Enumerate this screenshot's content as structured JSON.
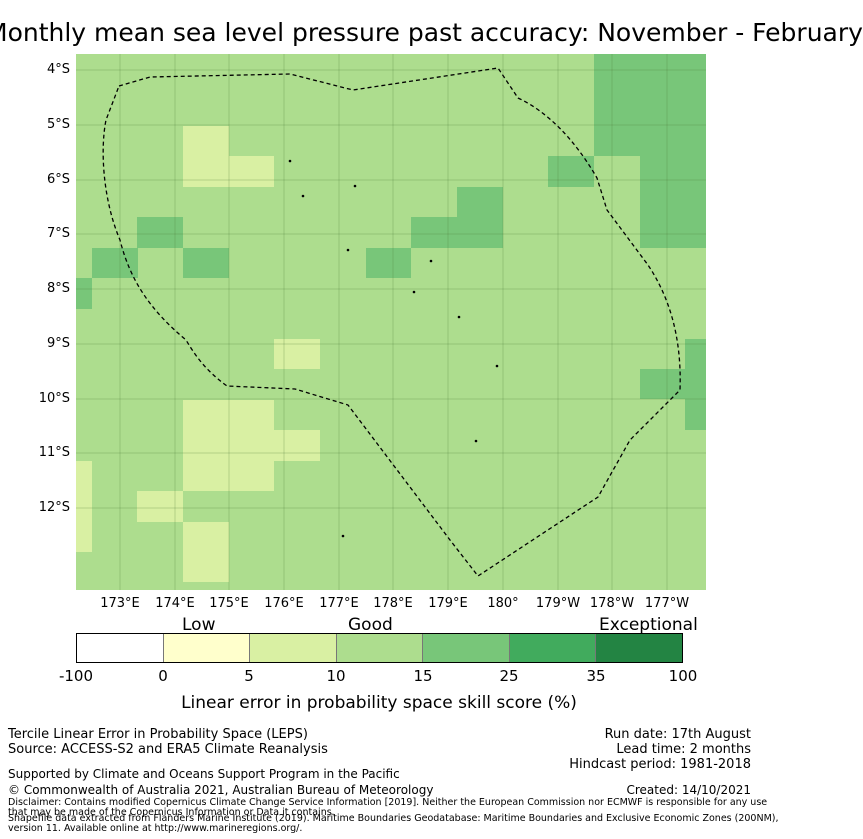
{
  "title": "Monthly mean sea level pressure past accuracy: November - February",
  "map": {
    "lat_labels": [
      "4°S",
      "5°S",
      "6°S",
      "7°S",
      "8°S",
      "9°S",
      "10°S",
      "11°S",
      "12°S"
    ],
    "lon_labels": [
      "173°E",
      "174°E",
      "175°E",
      "176°E",
      "177°E",
      "178°E",
      "179°E",
      "180°",
      "179°W",
      "178°W",
      "177°W"
    ],
    "colors": {
      "good_mid": "#addd8e",
      "good_low": "#d9f0a3",
      "good_high": "#78c679",
      "exceptional_low": "#41ab5d",
      "exceptional_high": "#238443",
      "low": "#ffffcc",
      "none": "#ffffff",
      "grid": "#4d7a3a",
      "boundary": "#000000"
    }
  },
  "colorbar": {
    "categories": [
      "Low",
      "Good",
      "Exceptional"
    ],
    "ticks": [
      "-100",
      "0",
      "5",
      "10",
      "15",
      "25",
      "35",
      "100"
    ],
    "colors": [
      "#ffffff",
      "#ffffcc",
      "#d9f0a3",
      "#addd8e",
      "#78c679",
      "#41ab5d",
      "#238443"
    ],
    "label": "Linear error in probability space skill score (%)"
  },
  "info": {
    "line1": "Tercile Linear Error in Probability Space (LEPS)",
    "line2": "Source: ACCESS-S2 and ERA5 Climate Reanalysis",
    "run_date": "Run date: 17th August",
    "lead_time": "Lead time: 2 months",
    "hindcast": "Hindcast period: 1981-2018",
    "supported": "Supported by Climate and Oceans Support Program in the Pacific",
    "copyright": "© Commonwealth of Australia 2021, Australian Bureau of Meteorology",
    "created": "Created: 14/10/2021",
    "disclaimer1": "Disclaimer: Contains modified Copernicus Climate Change Service Information [2019]. Neither the European Commission nor ECMWF is responsible for any use",
    "disclaimer2": "that may be made of the Copernicus Information or Data it contains.",
    "shapefile1": "Shapefile data extracted from Flanders Marine Institute (2019). Maritime Boundaries Geodatabase: Maritime Boundaries and Exclusive Economic Zones (200NM),",
    "shapefile2": "version 11. Available online at http://www.marineregions.org/."
  }
}
